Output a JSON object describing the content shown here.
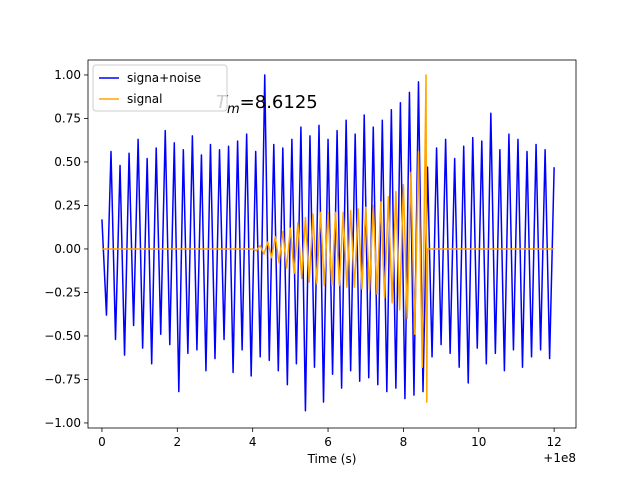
{
  "chart_data": {
    "type": "line",
    "xlabel": "Time (s)",
    "x_offset_label": "+1e8",
    "annotation": {
      "symbol": "T",
      "subscript": "m",
      "text": "=8.6125"
    },
    "xlim": [
      -0.37,
      12.58
    ],
    "ylim": [
      -1.029,
      1.086
    ],
    "xticks": [
      0,
      2,
      4,
      6,
      8,
      10,
      12
    ],
    "yticks": [
      {
        "value": -1,
        "label": "−1.00"
      },
      {
        "value": -0.75,
        "label": "−0.75"
      },
      {
        "value": -0.5,
        "label": "−0.50"
      },
      {
        "value": -0.25,
        "label": "−0.25"
      },
      {
        "value": 0,
        "label": "0.00"
      },
      {
        "value": 0.25,
        "label": "0.25"
      },
      {
        "value": 0.5,
        "label": "0.50"
      },
      {
        "value": 0.75,
        "label": "0.75"
      },
      {
        "value": 1,
        "label": "1.00"
      }
    ],
    "legend": "upper left",
    "series": [
      {
        "name": "signa+noise",
        "color": "#0000ff",
        "x": [
          0,
          0.12,
          0.24,
          0.36,
          0.48,
          0.6,
          0.72,
          0.84,
          0.96,
          1.08,
          1.2,
          1.32,
          1.44,
          1.56,
          1.68,
          1.8,
          1.92,
          2.04,
          2.16,
          2.28,
          2.4,
          2.52,
          2.64,
          2.76,
          2.88,
          3.0,
          3.12,
          3.24,
          3.36,
          3.48,
          3.6,
          3.72,
          3.84,
          3.96,
          4.08,
          4.2,
          4.32,
          4.44,
          4.56,
          4.68,
          4.8,
          4.92,
          5.04,
          5.16,
          5.28,
          5.4,
          5.52,
          5.64,
          5.76,
          5.88,
          6.0,
          6.12,
          6.24,
          6.36,
          6.48,
          6.6,
          6.72,
          6.84,
          6.96,
          7.08,
          7.2,
          7.32,
          7.44,
          7.56,
          7.68,
          7.8,
          7.92,
          8.04,
          8.16,
          8.28,
          8.4,
          8.52,
          8.64,
          8.76,
          8.88,
          9.0,
          9.12,
          9.24,
          9.36,
          9.48,
          9.6,
          9.72,
          9.84,
          9.96,
          10.08,
          10.2,
          10.32,
          10.44,
          10.56,
          10.68,
          10.8,
          10.92,
          11.04,
          11.16,
          11.28,
          11.4,
          11.52,
          11.64,
          11.76,
          11.88,
          12.0
        ],
        "values": [
          0.17,
          -0.38,
          0.56,
          -0.52,
          0.48,
          -0.61,
          0.55,
          -0.44,
          0.63,
          -0.57,
          0.52,
          -0.66,
          0.58,
          -0.49,
          0.68,
          -0.55,
          0.61,
          -0.82,
          0.57,
          -0.6,
          0.65,
          -0.58,
          0.54,
          -0.7,
          0.6,
          -0.63,
          0.57,
          -0.52,
          0.59,
          -0.71,
          0.62,
          -0.58,
          0.66,
          -0.73,
          0.56,
          -0.62,
          1.0,
          -0.64,
          0.6,
          -0.7,
          0.58,
          -0.78,
          0.63,
          -0.66,
          0.7,
          -0.93,
          0.65,
          -0.68,
          0.71,
          -0.88,
          0.63,
          -0.72,
          0.68,
          -0.8,
          0.74,
          -0.7,
          0.66,
          -0.76,
          0.77,
          -0.74,
          0.7,
          -0.78,
          0.74,
          -0.82,
          0.8,
          -0.8,
          0.84,
          -0.86,
          0.9,
          -0.84,
          0.96,
          -0.82,
          0.47,
          -0.62,
          0.58,
          -0.55,
          0.63,
          -0.6,
          0.52,
          -0.68,
          0.59,
          -0.77,
          0.64,
          -0.57,
          0.62,
          -0.66,
          0.78,
          -0.6,
          0.57,
          -0.7,
          0.66,
          -0.58,
          0.63,
          -0.68,
          0.56,
          -0.62,
          0.6,
          -0.58,
          0.57,
          -0.63,
          0.47
        ]
      },
      {
        "name": "signal",
        "color": "#ffa500",
        "x": [
          0,
          4.0,
          4.1,
          4.2,
          4.3,
          4.4,
          4.5,
          4.6,
          4.7,
          4.8,
          4.9,
          5.0,
          5.1,
          5.2,
          5.3,
          5.4,
          5.5,
          5.6,
          5.7,
          5.8,
          5.9,
          6.0,
          6.1,
          6.2,
          6.3,
          6.4,
          6.5,
          6.6,
          6.7,
          6.8,
          6.9,
          7.0,
          7.1,
          7.2,
          7.3,
          7.4,
          7.5,
          7.6,
          7.7,
          7.8,
          7.9,
          8.0,
          8.1,
          8.2,
          8.3,
          8.4,
          8.5,
          8.6,
          8.62,
          8.64,
          12.0
        ],
        "values": [
          0,
          0,
          -0.01,
          0.02,
          -0.03,
          0.04,
          -0.05,
          0.07,
          -0.08,
          0.1,
          -0.11,
          0.12,
          -0.14,
          0.15,
          -0.17,
          0.18,
          -0.19,
          0.2,
          -0.2,
          0.21,
          -0.21,
          0.21,
          -0.21,
          0.21,
          -0.21,
          0.21,
          -0.22,
          0.22,
          -0.22,
          0.23,
          -0.23,
          0.24,
          -0.24,
          0.25,
          -0.26,
          0.27,
          -0.28,
          0.3,
          -0.31,
          0.33,
          -0.35,
          0.37,
          -0.4,
          0.44,
          -0.49,
          0.56,
          -0.68,
          1.0,
          -0.88,
          0,
          0
        ]
      }
    ]
  }
}
